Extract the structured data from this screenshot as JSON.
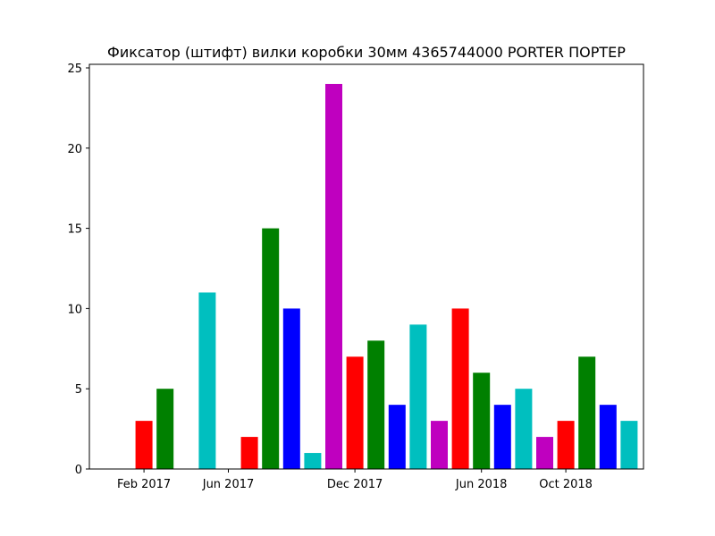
{
  "chart_data": {
    "type": "bar",
    "title": "Фиксатор (штифт) вилки коробки 30мм 4365744000 PORTER ПОРТЕР",
    "xlabel": "",
    "ylabel": "",
    "ylim": [
      0,
      25
    ],
    "yticks": [
      0,
      5,
      10,
      15,
      20,
      25
    ],
    "xtick_labels": [
      "Feb 2017",
      "Jun 2017",
      "Dec 2017",
      "Jun 2018",
      "Oct 2018"
    ],
    "categories": [
      "Jan 2017",
      "Feb 2017",
      "Mar 2017",
      "Apr 2017",
      "May 2017",
      "Jun 2017",
      "Jul 2017",
      "Aug 2017",
      "Sep 2017",
      "Oct 2017",
      "Nov 2017",
      "Dec 2017",
      "Jan 2018",
      "Feb 2018",
      "Mar 2018",
      "Apr 2018",
      "May 2018",
      "Jun 2018",
      "Jul 2018",
      "Aug 2018",
      "Sep 2018",
      "Oct 2018",
      "Nov 2018",
      "Dec 2018",
      "Jan 2019",
      "Feb 2019"
    ],
    "values": [
      0,
      3,
      5,
      0,
      11,
      0,
      2,
      15,
      10,
      1,
      24,
      7,
      8,
      4,
      9,
      3,
      10,
      6,
      4,
      5,
      2,
      3,
      7,
      4,
      3,
      0
    ],
    "bar_colors": [
      "#ff0000",
      "#ff0000",
      "#008000",
      "#0000ff",
      "#00bfbf",
      "#bf00bf",
      "#ff0000",
      "#008000",
      "#0000ff",
      "#00bfbf",
      "#bf00bf",
      "#ff0000",
      "#008000",
      "#0000ff",
      "#00bfbf",
      "#bf00bf",
      "#ff0000",
      "#008000",
      "#0000ff",
      "#00bfbf",
      "#bf00bf",
      "#ff0000",
      "#008000",
      "#0000ff",
      "#00bfbf",
      "#bf00bf"
    ],
    "grid": false,
    "legend": "none"
  }
}
